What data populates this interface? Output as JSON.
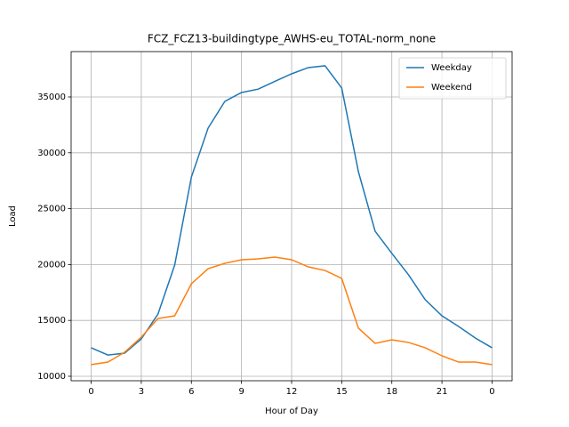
{
  "chart_data": {
    "type": "line",
    "title": "FCZ_FCZ13-buildingtype_AWHS-eu_TOTAL-norm_none",
    "x_label": "Hour of Day",
    "y_label": "Load",
    "x": [
      0,
      1,
      2,
      3,
      4,
      5,
      6,
      7,
      8,
      9,
      10,
      11,
      12,
      13,
      14,
      15,
      16,
      17,
      18,
      19,
      20,
      21,
      22,
      23,
      24
    ],
    "series": [
      {
        "name": "Weekday",
        "color": "#1f77b4",
        "values": [
          12550,
          11900,
          12070,
          13340,
          15570,
          19950,
          27830,
          32210,
          34600,
          35400,
          35700,
          36400,
          37070,
          37630,
          37790,
          35800,
          28300,
          22980,
          21000,
          19080,
          16850,
          15410,
          14460,
          13420,
          12550
        ]
      },
      {
        "name": "Weekend",
        "color": "#ff7f0e",
        "values": [
          11040,
          11270,
          12150,
          13500,
          15170,
          15410,
          18280,
          19630,
          20110,
          20430,
          20510,
          20670,
          20430,
          19790,
          19470,
          18760,
          14300,
          12950,
          13260,
          13030,
          12550,
          11830,
          11270,
          11270,
          11040
        ]
      }
    ],
    "xlim": [
      -1.2,
      25.2
    ],
    "ylim": [
      9600,
      39060
    ],
    "xticks": [
      0,
      3,
      6,
      9,
      12,
      15,
      18,
      21,
      {
        "value": 24,
        "label": "0"
      }
    ],
    "yticks": [
      10000,
      15000,
      20000,
      25000,
      30000,
      35000
    ],
    "grid": true,
    "legend": "upper right"
  }
}
